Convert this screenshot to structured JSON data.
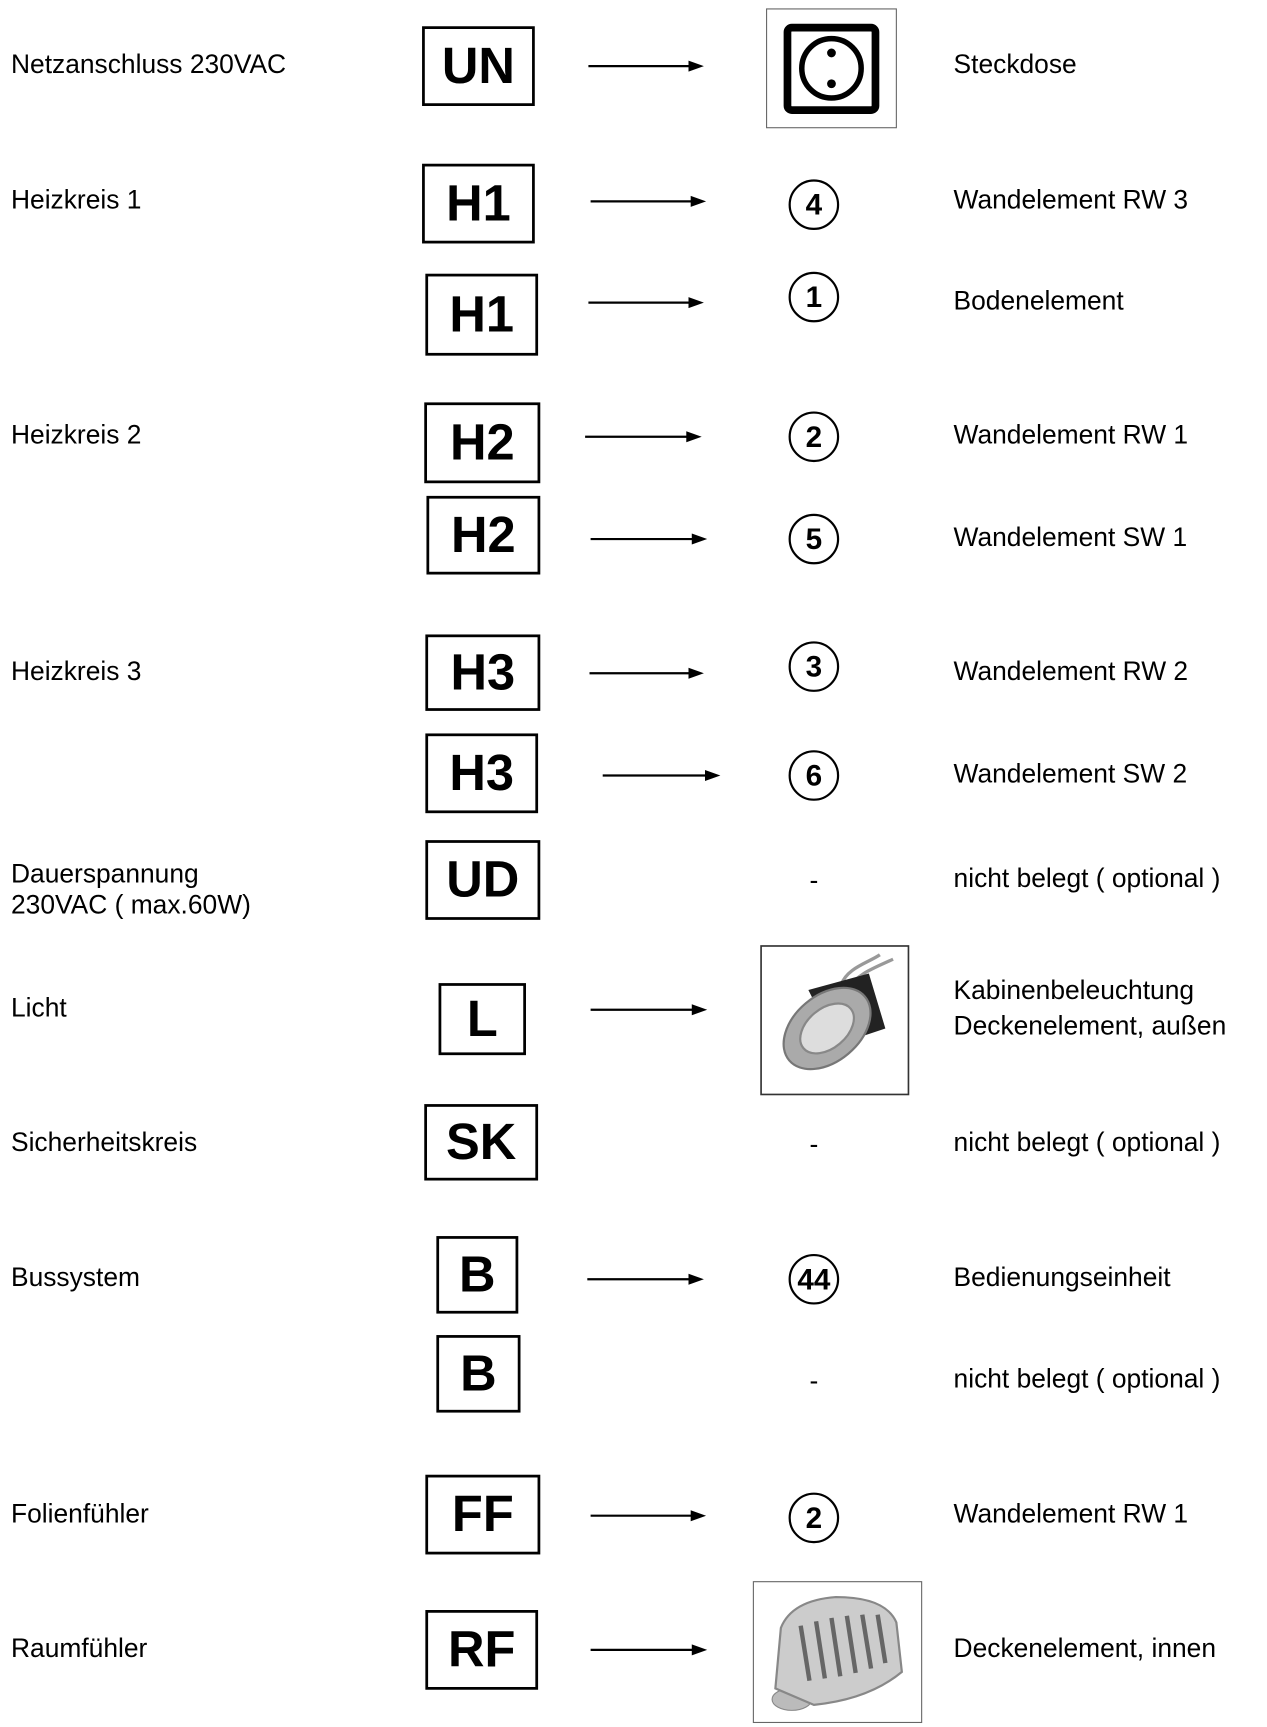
{
  "rows": [
    {
      "label": [
        "Netzanschluss 230VAC"
      ],
      "code": "UN",
      "description": [
        "Steckdose"
      ]
    },
    {
      "label": [
        "Heizkreis 1"
      ],
      "code": "H1",
      "target": "4",
      "description": [
        "Wandelement RW 3"
      ]
    },
    {
      "label": [],
      "code": "H1",
      "target": "1",
      "description": [
        "Bodenelement"
      ]
    },
    {
      "label": [
        "Heizkreis 2"
      ],
      "code": "H2",
      "target": "2",
      "description": [
        "Wandelement RW 1"
      ]
    },
    {
      "label": [],
      "code": "H2",
      "target": "5",
      "description": [
        "Wandelement SW 1"
      ]
    },
    {
      "label": [
        "Heizkreis 3"
      ],
      "code": "H3",
      "target": "3",
      "description": [
        "Wandelement RW 2"
      ]
    },
    {
      "label": [],
      "code": "H3",
      "target": "6",
      "description": [
        "Wandelement SW 2"
      ]
    },
    {
      "label": [
        "Dauerspannung",
        "230VAC ( max.60W)"
      ],
      "code": "UD",
      "target": "-",
      "description": [
        "nicht belegt ( optional )"
      ]
    },
    {
      "label": [
        "Licht"
      ],
      "code": "L",
      "description": [
        "Kabinenbeleuchtung",
        "Deckenelement, außen"
      ]
    },
    {
      "label": [
        "Sicherheitskreis"
      ],
      "code": "SK",
      "target": "-",
      "description": [
        "nicht belegt ( optional )"
      ]
    },
    {
      "label": [
        "Bussystem"
      ],
      "code": "B",
      "target": "44",
      "description": [
        "Bedienungseinheit"
      ]
    },
    {
      "label": [],
      "code": "B",
      "target": "-",
      "description": [
        "nicht belegt ( optional )"
      ]
    },
    {
      "label": [
        "Folienfühler"
      ],
      "code": "FF",
      "target": "2",
      "description": [
        "Wandelement RW 1"
      ]
    },
    {
      "label": [
        "Raumfühler"
      ],
      "code": "RF",
      "description": [
        "Deckenelement, innen"
      ]
    }
  ]
}
